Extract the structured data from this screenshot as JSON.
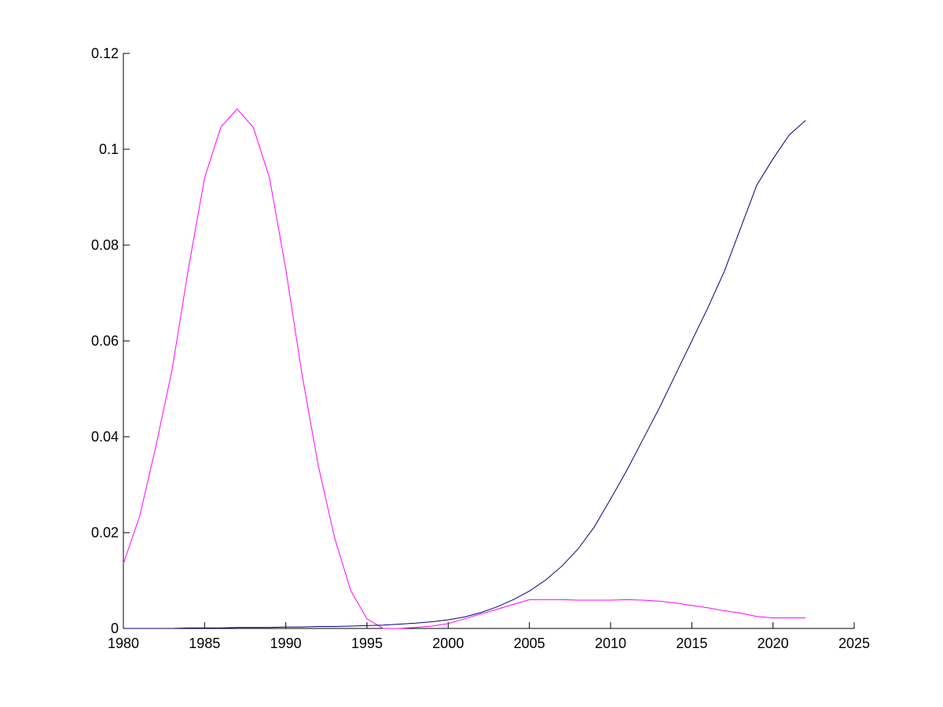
{
  "chart_data": {
    "type": "line",
    "x": [
      1980,
      1981,
      1982,
      1983,
      1984,
      1985,
      1986,
      1987,
      1988,
      1989,
      1990,
      1991,
      1992,
      1993,
      1994,
      1995,
      1996,
      1997,
      1998,
      1999,
      2000,
      2001,
      2002,
      2003,
      2004,
      2005,
      2006,
      2007,
      2008,
      2009,
      2010,
      2011,
      2012,
      2013,
      2014,
      2015,
      2016,
      2017,
      2018,
      2019,
      2020,
      2021,
      2022
    ],
    "series": [
      {
        "color": "#ff00ff",
        "values": [
          0.0135,
          0.0234,
          0.038,
          0.054,
          0.075,
          0.094,
          0.1046,
          0.1084,
          0.1046,
          0.094,
          0.075,
          0.053,
          0.034,
          0.019,
          0.0079,
          0.002,
          0,
          0,
          0.0002,
          0.0005,
          0.001,
          0.002,
          0.003,
          0.004,
          0.005,
          0.006,
          0.006,
          0.006,
          0.0059,
          0.0059,
          0.0059,
          0.006,
          0.0059,
          0.0057,
          0.0053,
          0.0048,
          0.0043,
          0.0037,
          0.0032,
          0.0025,
          0.0022,
          0.0022,
          0.0022
        ]
      },
      {
        "color": "#000080",
        "values": [
          0,
          0,
          0,
          0,
          0.0001,
          0.0001,
          0.0001,
          0.0002,
          0.0002,
          0.0002,
          0.0003,
          0.0003,
          0.0004,
          0.0004,
          0.0005,
          0.0006,
          0.0007,
          0.0009,
          0.0011,
          0.0014,
          0.0018,
          0.0024,
          0.0033,
          0.0045,
          0.006,
          0.0078,
          0.0101,
          0.013,
          0.0166,
          0.0212,
          0.027,
          0.033,
          0.0395,
          0.046,
          0.053,
          0.06,
          0.067,
          0.0745,
          0.0835,
          0.0925,
          0.098,
          0.103,
          0.106
        ]
      }
    ],
    "xlim": [
      1980,
      2025
    ],
    "xticks": [
      1980,
      1985,
      1990,
      1995,
      2000,
      2005,
      2010,
      2015,
      2020,
      2025
    ],
    "ylim": [
      0,
      0.12
    ],
    "yticks": [
      0,
      0.02,
      0.04,
      0.06,
      0.08,
      0.1,
      0.12
    ]
  }
}
